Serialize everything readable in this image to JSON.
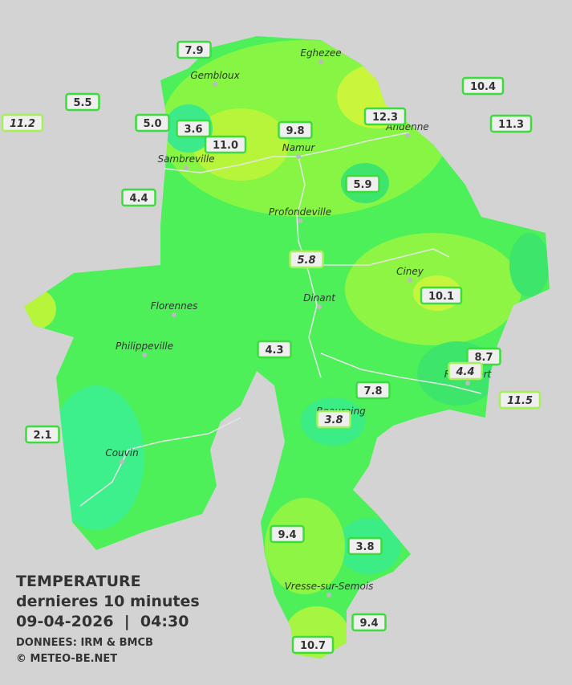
{
  "legend": {
    "title": "TEMPERATURE",
    "subtitle": "dernieres 10 minutes",
    "timestamp": "09-04-2026  |  04:30",
    "source": "DONNEES: IRM & BMCB",
    "copyright": "© METEO-BE.NET"
  },
  "towns": [
    "Eghezee",
    "Gembloux",
    "Andenne",
    "Namur",
    "Sambreville",
    "Profondeville",
    "Ciney",
    "Dinant",
    "Florennes",
    "Philippeville",
    "Rochefort",
    "Beauraing",
    "Couvin",
    "Vresse-sur-Semois"
  ],
  "readings": [
    {
      "text": "7.9"
    },
    {
      "text": "5.5"
    },
    {
      "text": "11.2",
      "style": "italic"
    },
    {
      "text": "5.0"
    },
    {
      "text": "3.6"
    },
    {
      "text": "11.0"
    },
    {
      "text": "9.8"
    },
    {
      "text": "12.3"
    },
    {
      "text": "10.4"
    },
    {
      "text": "11.3"
    },
    {
      "text": "4.4"
    },
    {
      "text": "5.9"
    },
    {
      "text": "5.8",
      "style": "italic"
    },
    {
      "text": "10.1"
    },
    {
      "text": "4.3"
    },
    {
      "text": "8.7"
    },
    {
      "text": "4.4",
      "style": "italic"
    },
    {
      "text": "7.8"
    },
    {
      "text": "11.5",
      "style": "italic"
    },
    {
      "text": "3.8",
      "style": "italic"
    },
    {
      "text": "2.1"
    },
    {
      "text": "9.4"
    },
    {
      "text": "3.8"
    },
    {
      "text": "9.4"
    },
    {
      "text": "10.7"
    }
  ]
}
